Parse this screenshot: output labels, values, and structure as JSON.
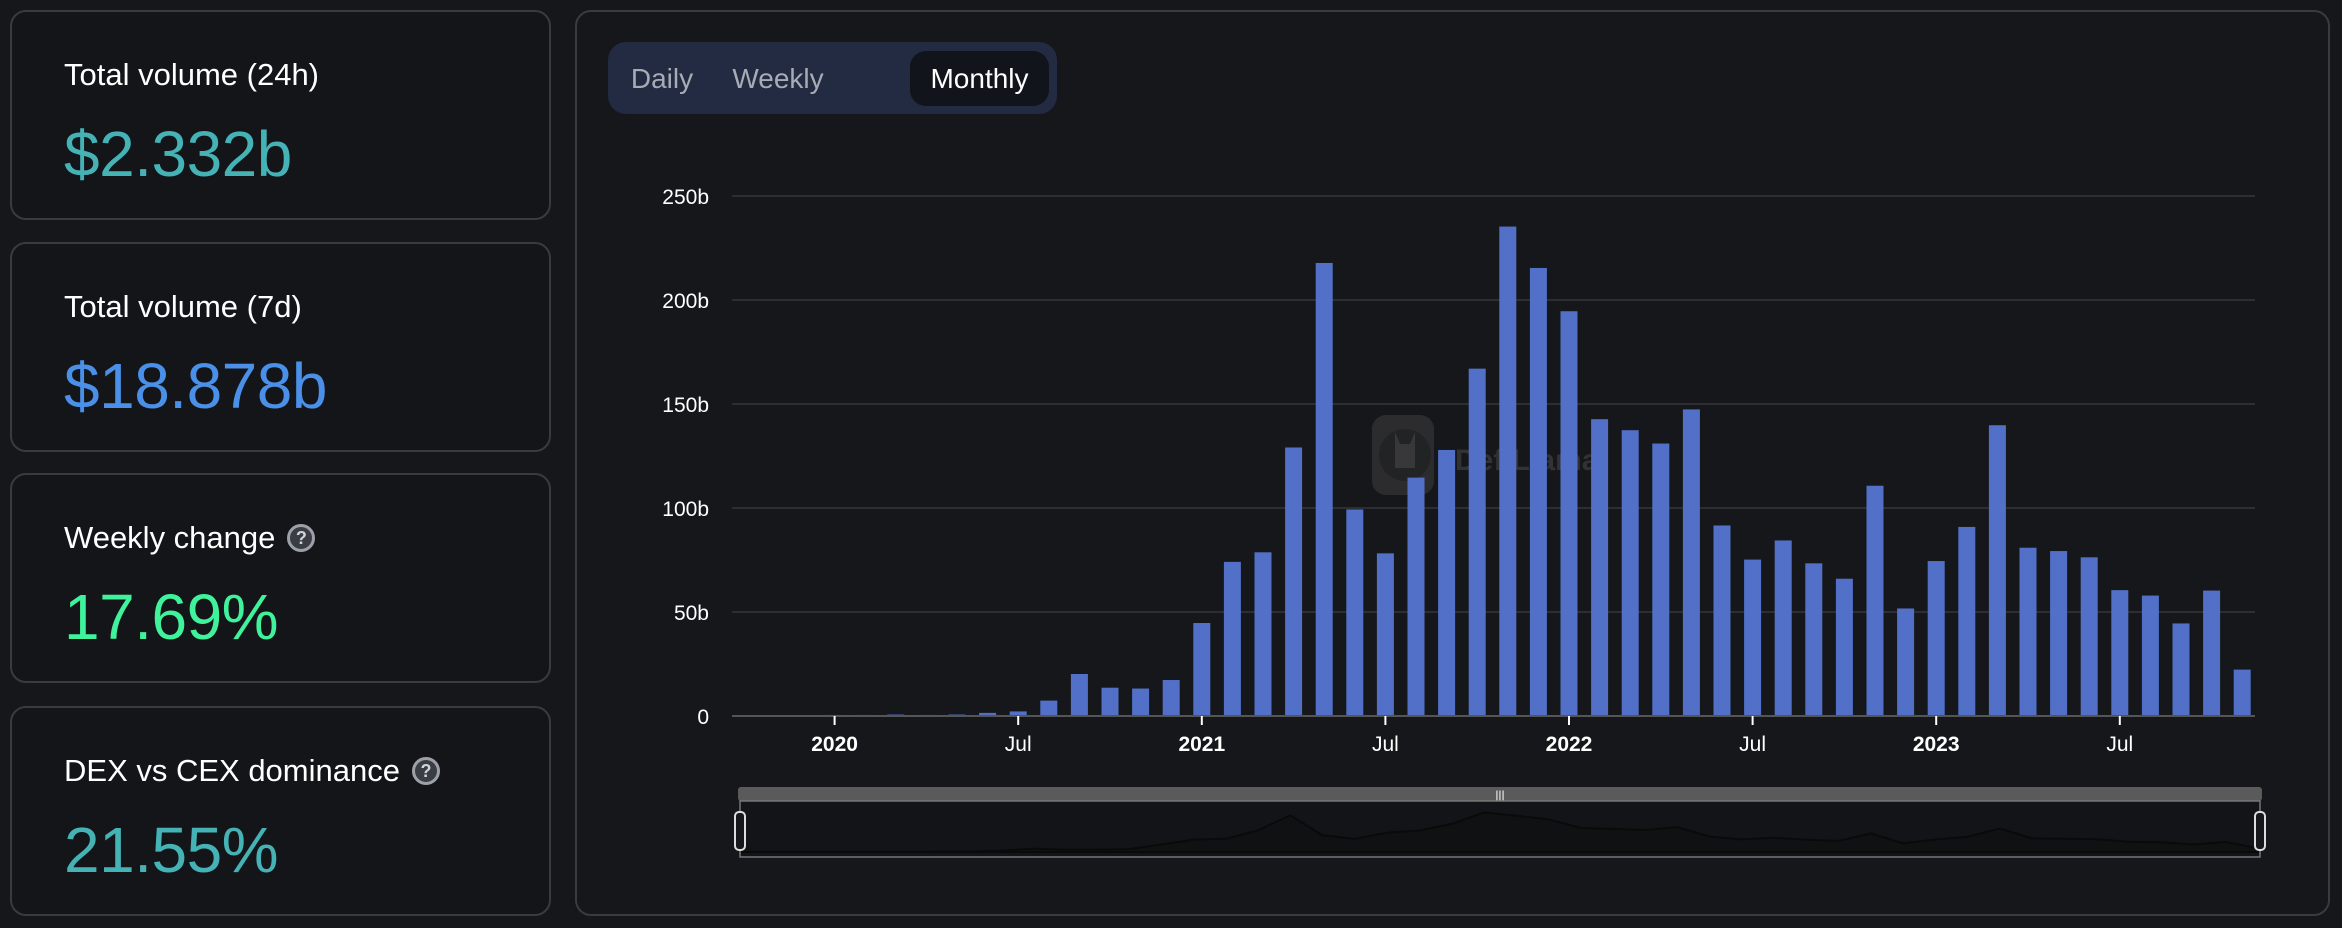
{
  "stats": [
    {
      "label": "Total volume (24h)",
      "value": "$2.332b",
      "color": "#45b2b6",
      "help": false
    },
    {
      "label": "Total volume (7d)",
      "value": "$18.878b",
      "color": "#4a8fe8",
      "help": false
    },
    {
      "label": "Weekly change",
      "value": "17.69%",
      "color": "#3ff29b",
      "help": true
    },
    {
      "label": "DEX vs CEX dominance",
      "value": "21.55%",
      "color": "#45b2b6",
      "help": true
    }
  ],
  "help_icon": "?",
  "toggle": {
    "options": [
      "Daily",
      "Weekly",
      "Monthly"
    ],
    "selected": "Monthly"
  },
  "watermark": "DefiLlama",
  "slider_handle_glyph": "|||",
  "chart_data": {
    "type": "bar",
    "bar_color": "#5270c8",
    "grid": true,
    "ylim": [
      0,
      250
    ],
    "y_ticks": [
      "0",
      "50b",
      "100b",
      "150b",
      "200b",
      "250b"
    ],
    "y_tick_values": [
      0,
      50,
      100,
      150,
      200,
      250
    ],
    "x_ticks": [
      {
        "label": "2020",
        "month": "2020-01",
        "bold": true
      },
      {
        "label": "Jul",
        "month": "2020-07",
        "bold": false
      },
      {
        "label": "2021",
        "month": "2021-01",
        "bold": true
      },
      {
        "label": "Jul",
        "month": "2021-07",
        "bold": false
      },
      {
        "label": "2022",
        "month": "2022-01",
        "bold": true
      },
      {
        "label": "Jul",
        "month": "2022-07",
        "bold": false
      },
      {
        "label": "2023",
        "month": "2023-01",
        "bold": true
      },
      {
        "label": "Jul",
        "month": "2023-07",
        "bold": false
      }
    ],
    "categories": [
      "2019-12",
      "2020-01",
      "2020-02",
      "2020-03",
      "2020-04",
      "2020-05",
      "2020-06",
      "2020-07",
      "2020-08",
      "2020-09",
      "2020-10",
      "2020-11",
      "2020-12",
      "2021-01",
      "2021-02",
      "2021-03",
      "2021-04",
      "2021-05",
      "2021-06",
      "2021-07",
      "2021-08",
      "2021-09",
      "2021-10",
      "2021-11",
      "2021-12",
      "2022-01",
      "2022-02",
      "2022-03",
      "2022-04",
      "2022-05",
      "2022-06",
      "2022-07",
      "2022-08",
      "2022-09",
      "2022-10",
      "2022-11",
      "2022-12",
      "2023-01",
      "2023-02",
      "2023-03",
      "2023-04",
      "2023-05",
      "2023-06",
      "2023-07",
      "2023-08",
      "2023-09",
      "2023-10",
      "2023-11"
    ],
    "values": [
      0.4,
      0.5,
      0.5,
      0.7,
      0.5,
      0.7,
      1.5,
      2.2,
      7.4,
      20.2,
      13.6,
      13.2,
      17.3,
      44.7,
      74.1,
      78.7,
      129.1,
      217.8,
      99.3,
      78.2,
      114.6,
      127.9,
      167.0,
      235.3,
      215.4,
      194.6,
      142.7,
      137.4,
      131.0,
      147.4,
      91.6,
      75.2,
      84.4,
      73.4,
      66.0,
      110.7,
      51.7,
      74.5,
      90.9,
      139.8,
      80.9,
      79.3,
      76.3,
      60.5,
      57.9,
      44.5,
      60.3,
      22.3
    ],
    "unit": "b"
  }
}
